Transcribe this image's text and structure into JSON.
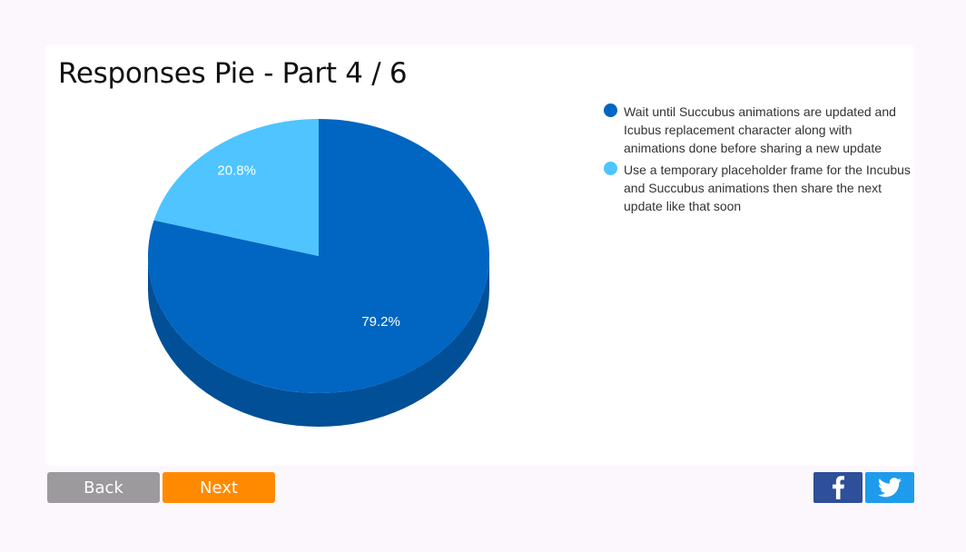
{
  "colors": {
    "series": [
      "#0066c1",
      "#4fc4ff"
    ],
    "series_side": [
      "#004f97",
      "#3aa7dd"
    ]
  },
  "chart_data": {
    "type": "pie",
    "title": "Responses Pie - Part 4 / 6",
    "labels": [
      "Wait until Succubus animations are updated and Icubus replacement character along with animations done before sharing a new update",
      "Use a temporary placeholder frame for the Incubus and Succubus animations then share the next update like that soon"
    ],
    "values": [
      79.2,
      20.8
    ],
    "value_labels": [
      "79.2%",
      "20.8%"
    ],
    "legend_placement": "right",
    "style": "3d"
  },
  "nav": {
    "back_label": "Back",
    "next_label": "Next"
  },
  "social": {
    "facebook_icon": "facebook-icon",
    "twitter_icon": "twitter-icon"
  }
}
